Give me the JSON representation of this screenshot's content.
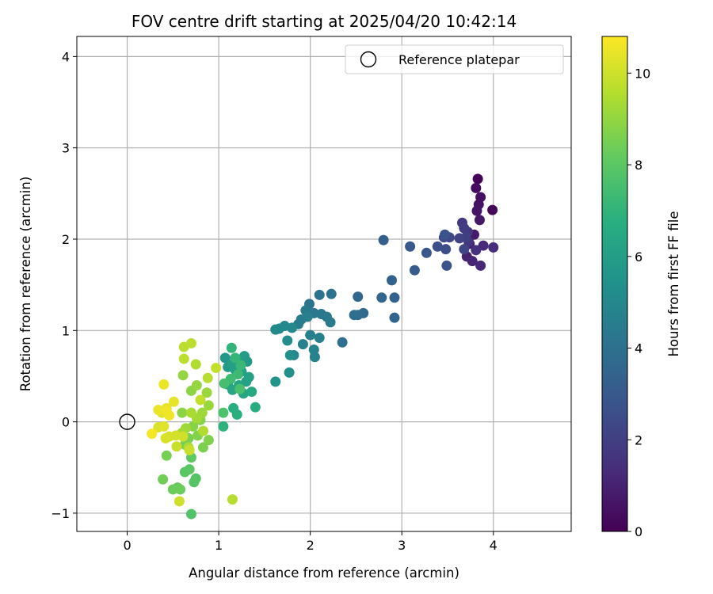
{
  "chart_data": {
    "type": "scatter",
    "title": "FOV centre drift starting at 2025/04/20 10:42:14",
    "xlabel": "Angular distance from reference (arcmin)",
    "ylabel": "Rotation from reference (arcmin)",
    "xlim": [
      -0.55,
      4.85
    ],
    "ylim": [
      -1.2,
      4.22
    ],
    "xticks": [
      0,
      1,
      2,
      3,
      4
    ],
    "yticks": [
      -1,
      0,
      1,
      2,
      3,
      4
    ],
    "grid": true,
    "colormap": "viridis",
    "colorbar": {
      "label": "Hours from first FF file",
      "min": 0,
      "max": 10.8,
      "ticks": [
        0,
        2,
        4,
        6,
        8,
        10
      ]
    },
    "legend": {
      "position": "top-right",
      "entries": [
        {
          "label": "Reference platepar",
          "marker": "open-circle"
        }
      ]
    },
    "reference_point": {
      "x": 0,
      "y": 0
    },
    "points": [
      {
        "x": 3.83,
        "y": 2.66,
        "h": 0.1
      },
      {
        "x": 3.99,
        "y": 2.32,
        "h": 0.2
      },
      {
        "x": 3.81,
        "y": 2.56,
        "h": 0.3
      },
      {
        "x": 3.86,
        "y": 2.46,
        "h": 0.4
      },
      {
        "x": 3.84,
        "y": 2.38,
        "h": 0.5
      },
      {
        "x": 3.82,
        "y": 2.31,
        "h": 0.6
      },
      {
        "x": 3.85,
        "y": 2.21,
        "h": 0.7
      },
      {
        "x": 3.79,
        "y": 2.05,
        "h": 0.8
      },
      {
        "x": 3.74,
        "y": 1.95,
        "h": 0.9
      },
      {
        "x": 3.71,
        "y": 1.81,
        "h": 1.0
      },
      {
        "x": 3.77,
        "y": 1.76,
        "h": 1.1
      },
      {
        "x": 3.86,
        "y": 1.71,
        "h": 1.2
      },
      {
        "x": 3.89,
        "y": 1.93,
        "h": 1.3
      },
      {
        "x": 4.0,
        "y": 1.91,
        "h": 1.4
      },
      {
        "x": 3.81,
        "y": 1.88,
        "h": 1.5
      },
      {
        "x": 3.73,
        "y": 1.97,
        "h": 1.6
      },
      {
        "x": 3.72,
        "y": 2.08,
        "h": 1.7
      },
      {
        "x": 3.66,
        "y": 2.18,
        "h": 1.8
      },
      {
        "x": 3.68,
        "y": 2.12,
        "h": 1.9
      },
      {
        "x": 3.7,
        "y": 2.02,
        "h": 2.0
      },
      {
        "x": 3.63,
        "y": 2.01,
        "h": 2.1
      },
      {
        "x": 3.68,
        "y": 1.89,
        "h": 2.2
      },
      {
        "x": 3.52,
        "y": 2.02,
        "h": 2.3
      },
      {
        "x": 3.46,
        "y": 2.02,
        "h": 2.4
      },
      {
        "x": 3.48,
        "y": 1.89,
        "h": 2.5
      },
      {
        "x": 3.39,
        "y": 1.92,
        "h": 2.6
      },
      {
        "x": 3.49,
        "y": 1.71,
        "h": 2.7
      },
      {
        "x": 3.47,
        "y": 2.05,
        "h": 2.8
      },
      {
        "x": 3.27,
        "y": 1.85,
        "h": 2.9
      },
      {
        "x": 3.09,
        "y": 1.92,
        "h": 3.0
      },
      {
        "x": 3.14,
        "y": 1.66,
        "h": 3.1
      },
      {
        "x": 2.8,
        "y": 1.99,
        "h": 3.2
      },
      {
        "x": 2.89,
        "y": 1.55,
        "h": 3.3
      },
      {
        "x": 2.92,
        "y": 1.36,
        "h": 3.4
      },
      {
        "x": 2.92,
        "y": 1.14,
        "h": 3.5
      },
      {
        "x": 2.78,
        "y": 1.36,
        "h": 3.6
      },
      {
        "x": 2.52,
        "y": 1.37,
        "h": 3.6
      },
      {
        "x": 2.58,
        "y": 1.19,
        "h": 3.7
      },
      {
        "x": 2.52,
        "y": 1.17,
        "h": 3.8
      },
      {
        "x": 2.48,
        "y": 1.17,
        "h": 3.9
      },
      {
        "x": 2.35,
        "y": 0.87,
        "h": 3.9
      },
      {
        "x": 2.23,
        "y": 1.4,
        "h": 4.0
      },
      {
        "x": 2.1,
        "y": 1.39,
        "h": 4.1
      },
      {
        "x": 1.99,
        "y": 1.29,
        "h": 4.1
      },
      {
        "x": 2.04,
        "y": 1.19,
        "h": 4.2
      },
      {
        "x": 2.12,
        "y": 1.18,
        "h": 4.3
      },
      {
        "x": 2.18,
        "y": 1.15,
        "h": 4.3
      },
      {
        "x": 2.22,
        "y": 1.09,
        "h": 4.4
      },
      {
        "x": 1.95,
        "y": 1.22,
        "h": 4.4
      },
      {
        "x": 1.9,
        "y": 1.12,
        "h": 4.5
      },
      {
        "x": 1.87,
        "y": 1.07,
        "h": 4.5
      },
      {
        "x": 1.97,
        "y": 1.15,
        "h": 4.6
      },
      {
        "x": 2.0,
        "y": 0.95,
        "h": 4.6
      },
      {
        "x": 2.1,
        "y": 0.92,
        "h": 4.7
      },
      {
        "x": 1.92,
        "y": 0.85,
        "h": 4.7
      },
      {
        "x": 2.04,
        "y": 0.79,
        "h": 4.8
      },
      {
        "x": 2.05,
        "y": 0.71,
        "h": 4.8
      },
      {
        "x": 1.82,
        "y": 0.73,
        "h": 4.9
      },
      {
        "x": 1.8,
        "y": 1.03,
        "h": 5.0
      },
      {
        "x": 1.72,
        "y": 1.05,
        "h": 5.0
      },
      {
        "x": 1.66,
        "y": 1.02,
        "h": 5.1
      },
      {
        "x": 1.62,
        "y": 1.01,
        "h": 5.1
      },
      {
        "x": 1.75,
        "y": 0.89,
        "h": 5.2
      },
      {
        "x": 1.78,
        "y": 0.73,
        "h": 5.3
      },
      {
        "x": 1.77,
        "y": 0.54,
        "h": 5.4
      },
      {
        "x": 1.62,
        "y": 0.44,
        "h": 5.6
      },
      {
        "x": 1.07,
        "y": 0.7,
        "h": 5.7
      },
      {
        "x": 1.1,
        "y": 0.6,
        "h": 5.8
      },
      {
        "x": 1.31,
        "y": 0.66,
        "h": 5.8
      },
      {
        "x": 1.28,
        "y": 0.72,
        "h": 5.9
      },
      {
        "x": 1.2,
        "y": 0.68,
        "h": 6.0
      },
      {
        "x": 1.15,
        "y": 0.63,
        "h": 6.0
      },
      {
        "x": 1.18,
        "y": 0.57,
        "h": 6.1
      },
      {
        "x": 1.25,
        "y": 0.55,
        "h": 6.1
      },
      {
        "x": 1.33,
        "y": 0.49,
        "h": 6.2
      },
      {
        "x": 1.3,
        "y": 0.44,
        "h": 6.2
      },
      {
        "x": 1.22,
        "y": 0.4,
        "h": 6.3
      },
      {
        "x": 1.15,
        "y": 0.35,
        "h": 6.3
      },
      {
        "x": 1.1,
        "y": 0.41,
        "h": 6.4
      },
      {
        "x": 1.27,
        "y": 0.31,
        "h": 6.4
      },
      {
        "x": 1.36,
        "y": 0.33,
        "h": 6.5
      },
      {
        "x": 1.4,
        "y": 0.16,
        "h": 6.6
      },
      {
        "x": 1.16,
        "y": 0.15,
        "h": 6.7
      },
      {
        "x": 1.2,
        "y": 0.08,
        "h": 6.8
      },
      {
        "x": 1.05,
        "y": -0.05,
        "h": 6.9
      },
      {
        "x": 1.14,
        "y": 0.81,
        "h": 7.0
      },
      {
        "x": 1.18,
        "y": 0.7,
        "h": 7.1
      },
      {
        "x": 1.24,
        "y": 0.62,
        "h": 7.2
      },
      {
        "x": 1.21,
        "y": 0.52,
        "h": 7.3
      },
      {
        "x": 1.13,
        "y": 0.47,
        "h": 7.4
      },
      {
        "x": 1.06,
        "y": 0.42,
        "h": 7.5
      },
      {
        "x": 1.23,
        "y": 0.36,
        "h": 7.6
      },
      {
        "x": 1.05,
        "y": 0.1,
        "h": 7.7
      },
      {
        "x": 0.7,
        "y": -1.01,
        "h": 7.8
      },
      {
        "x": 0.75,
        "y": -0.62,
        "h": 7.8
      },
      {
        "x": 0.73,
        "y": -0.66,
        "h": 7.9
      },
      {
        "x": 0.63,
        "y": -0.55,
        "h": 8.0
      },
      {
        "x": 0.68,
        "y": -0.52,
        "h": 8.0
      },
      {
        "x": 0.7,
        "y": -0.39,
        "h": 8.1
      },
      {
        "x": 0.55,
        "y": -0.72,
        "h": 8.2
      },
      {
        "x": 0.5,
        "y": -0.74,
        "h": 8.3
      },
      {
        "x": 0.58,
        "y": -0.74,
        "h": 8.3
      },
      {
        "x": 0.39,
        "y": -0.63,
        "h": 8.4
      },
      {
        "x": 0.43,
        "y": -0.37,
        "h": 8.5
      },
      {
        "x": 0.63,
        "y": -0.25,
        "h": 8.5
      },
      {
        "x": 0.67,
        "y": -0.18,
        "h": 8.6
      },
      {
        "x": 0.83,
        "y": -0.28,
        "h": 8.6
      },
      {
        "x": 0.77,
        "y": -0.15,
        "h": 8.7
      },
      {
        "x": 0.89,
        "y": -0.2,
        "h": 8.7
      },
      {
        "x": 0.72,
        "y": -0.05,
        "h": 8.8
      },
      {
        "x": 0.8,
        "y": 0.02,
        "h": 8.8
      },
      {
        "x": 0.6,
        "y": 0.1,
        "h": 8.9
      },
      {
        "x": 0.7,
        "y": 0.34,
        "h": 8.9
      },
      {
        "x": 0.61,
        "y": 0.51,
        "h": 9.0
      },
      {
        "x": 0.76,
        "y": 0.4,
        "h": 9.0
      },
      {
        "x": 0.87,
        "y": 0.32,
        "h": 9.1
      },
      {
        "x": 0.89,
        "y": 0.18,
        "h": 9.1
      },
      {
        "x": 0.82,
        "y": 0.1,
        "h": 9.2
      },
      {
        "x": 0.64,
        "y": -0.07,
        "h": 9.2
      },
      {
        "x": 0.6,
        "y": -0.12,
        "h": 9.3
      },
      {
        "x": 0.76,
        "y": 0.04,
        "h": 9.3
      },
      {
        "x": 0.7,
        "y": 0.1,
        "h": 9.4
      },
      {
        "x": 0.67,
        "y": -0.28,
        "h": 9.4
      },
      {
        "x": 0.83,
        "y": -0.1,
        "h": 9.5
      },
      {
        "x": 0.75,
        "y": 0.63,
        "h": 9.5
      },
      {
        "x": 0.88,
        "y": 0.48,
        "h": 9.6
      },
      {
        "x": 1.15,
        "y": -0.85,
        "h": 9.6
      },
      {
        "x": 0.62,
        "y": 0.69,
        "h": 9.7
      },
      {
        "x": 0.62,
        "y": 0.82,
        "h": 9.7
      },
      {
        "x": 0.7,
        "y": 0.86,
        "h": 9.7
      },
      {
        "x": 0.97,
        "y": 0.59,
        "h": 9.8
      },
      {
        "x": 0.8,
        "y": 0.24,
        "h": 9.8
      },
      {
        "x": 0.68,
        "y": -0.31,
        "h": 9.9
      },
      {
        "x": 0.54,
        "y": -0.27,
        "h": 9.9
      },
      {
        "x": 0.61,
        "y": -0.16,
        "h": 10.0
      },
      {
        "x": 0.57,
        "y": -0.87,
        "h": 10.0
      },
      {
        "x": 0.46,
        "y": -0.16,
        "h": 10.1
      },
      {
        "x": 0.53,
        "y": -0.15,
        "h": 10.1
      },
      {
        "x": 0.42,
        "y": -0.18,
        "h": 10.2
      },
      {
        "x": 0.34,
        "y": -0.06,
        "h": 10.2
      },
      {
        "x": 0.4,
        "y": -0.05,
        "h": 10.3
      },
      {
        "x": 0.38,
        "y": 0.1,
        "h": 10.3
      },
      {
        "x": 0.43,
        "y": 0.15,
        "h": 10.4
      },
      {
        "x": 0.51,
        "y": 0.22,
        "h": 10.4
      },
      {
        "x": 0.34,
        "y": 0.13,
        "h": 10.5
      },
      {
        "x": 0.4,
        "y": 0.41,
        "h": 10.5
      },
      {
        "x": 0.46,
        "y": 0.07,
        "h": 10.6
      },
      {
        "x": 0.43,
        "y": 0.12,
        "h": 10.6
      },
      {
        "x": 0.27,
        "y": -0.13,
        "h": 10.7
      }
    ]
  }
}
